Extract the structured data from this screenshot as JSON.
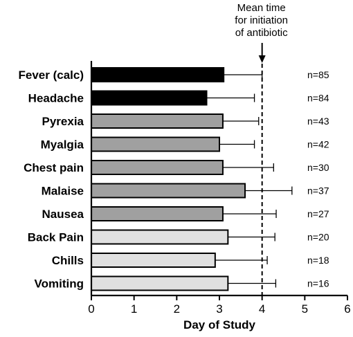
{
  "chart_data": {
    "type": "bar",
    "orientation": "horizontal",
    "xlabel": "Day of Study",
    "ylabel": "",
    "xlim": [
      0,
      6
    ],
    "x_ticks": [
      0,
      1,
      2,
      3,
      4,
      5,
      6
    ],
    "grid": false,
    "legend": "none",
    "categories": [
      "Fever (calc)",
      "Headache",
      "Pyrexia",
      "Myalgia",
      "Chest pain",
      "Malaise",
      "Nausea",
      "Back Pain",
      "Chills",
      "Vomiting"
    ],
    "values": [
      3.1,
      2.7,
      3.08,
      3.0,
      3.08,
      3.6,
      3.08,
      3.2,
      2.9,
      3.2
    ],
    "error_upper": [
      4.0,
      3.82,
      3.92,
      3.82,
      4.27,
      4.7,
      4.33,
      4.3,
      4.12,
      4.32
    ],
    "n_labels": [
      "n=85",
      "n=84",
      "n=43",
      "n=42",
      "n=30",
      "n=37",
      "n=27",
      "n=20",
      "n=18",
      "n=16"
    ],
    "bar_colors": [
      "#000000",
      "#000000",
      "#a0a0a0",
      "#a0a0a0",
      "#a0a0a0",
      "#a0a0a0",
      "#a0a0a0",
      "#e0e0e0",
      "#e0e0e0",
      "#e0e0e0"
    ],
    "reference_line": {
      "x": 4,
      "style": "dashed",
      "label_lines": [
        "Mean time",
        "for initiation",
        "of antibiotic"
      ]
    }
  }
}
